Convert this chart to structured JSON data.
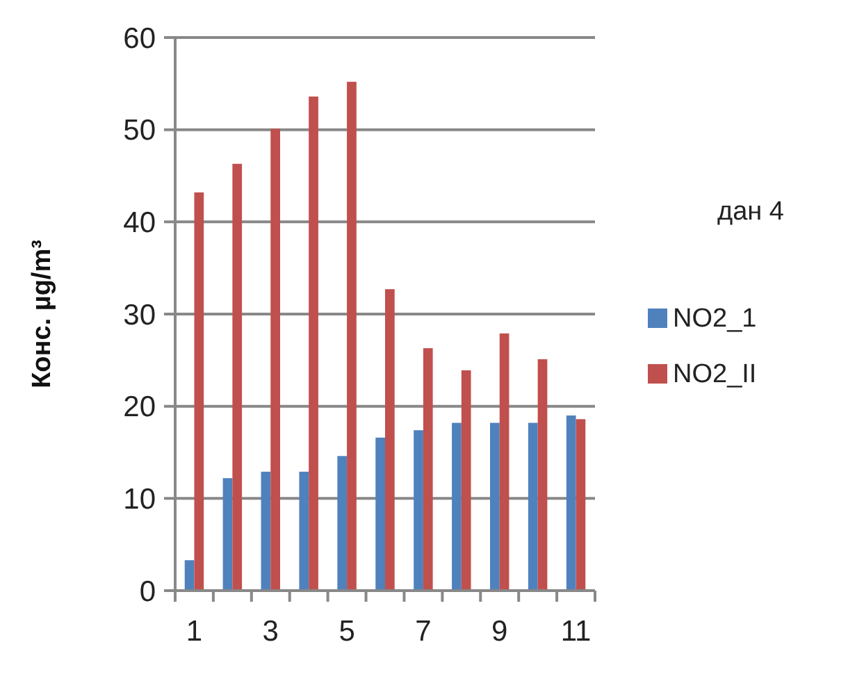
{
  "chart_data": {
    "type": "bar",
    "ylabel": "Конс. µg/m³",
    "legend_title": "дан 4",
    "categories": [
      "1",
      null,
      "3",
      null,
      "5",
      null,
      "7",
      null,
      "9",
      null,
      "11"
    ],
    "series": [
      {
        "name": "NO2_1",
        "color": "#4f81bd",
        "values": [
          3.3,
          12.2,
          12.9,
          12.9,
          14.6,
          16.6,
          17.4,
          18.2,
          18.2,
          18.2,
          19.0
        ]
      },
      {
        "name": "NO2_II",
        "color": "#c0504d",
        "values": [
          43.2,
          46.3,
          50.1,
          53.6,
          55.2,
          32.7,
          26.3,
          23.9,
          27.9,
          25.1,
          18.6
        ]
      }
    ],
    "ylim": [
      0,
      60
    ],
    "yticks": [
      0,
      10,
      20,
      30,
      40,
      50,
      60
    ],
    "grid": "y",
    "legend": "right"
  }
}
